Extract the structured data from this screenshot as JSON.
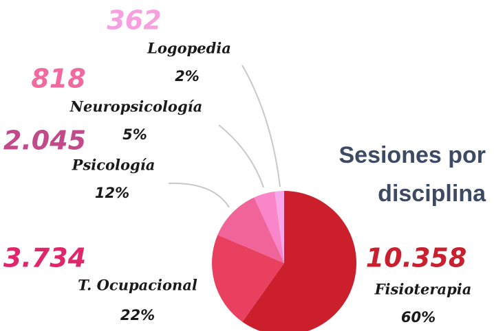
{
  "chart_data": {
    "type": "pie",
    "title": "Sesiones por disciplina",
    "categories": [
      "Fisioterapia",
      "T. Ocupacional",
      "Psicología",
      "Neuropsicología",
      "Logopedia"
    ],
    "values": [
      10358,
      3734,
      2045,
      818,
      362
    ],
    "value_labels": [
      "10.358",
      "3.734",
      "2.045",
      "818",
      "362"
    ],
    "percent_labels": [
      "60%",
      "22%",
      "12%",
      "5%",
      "2%"
    ],
    "colors": [
      "#cc1f2c",
      "#e8405e",
      "#f1649a",
      "#f986c8",
      "#f9a7e8"
    ],
    "label_colors": [
      "#c8202e",
      "#e0266a",
      "#c24a8a",
      "#f06a9f",
      "#f7a0df"
    ]
  }
}
